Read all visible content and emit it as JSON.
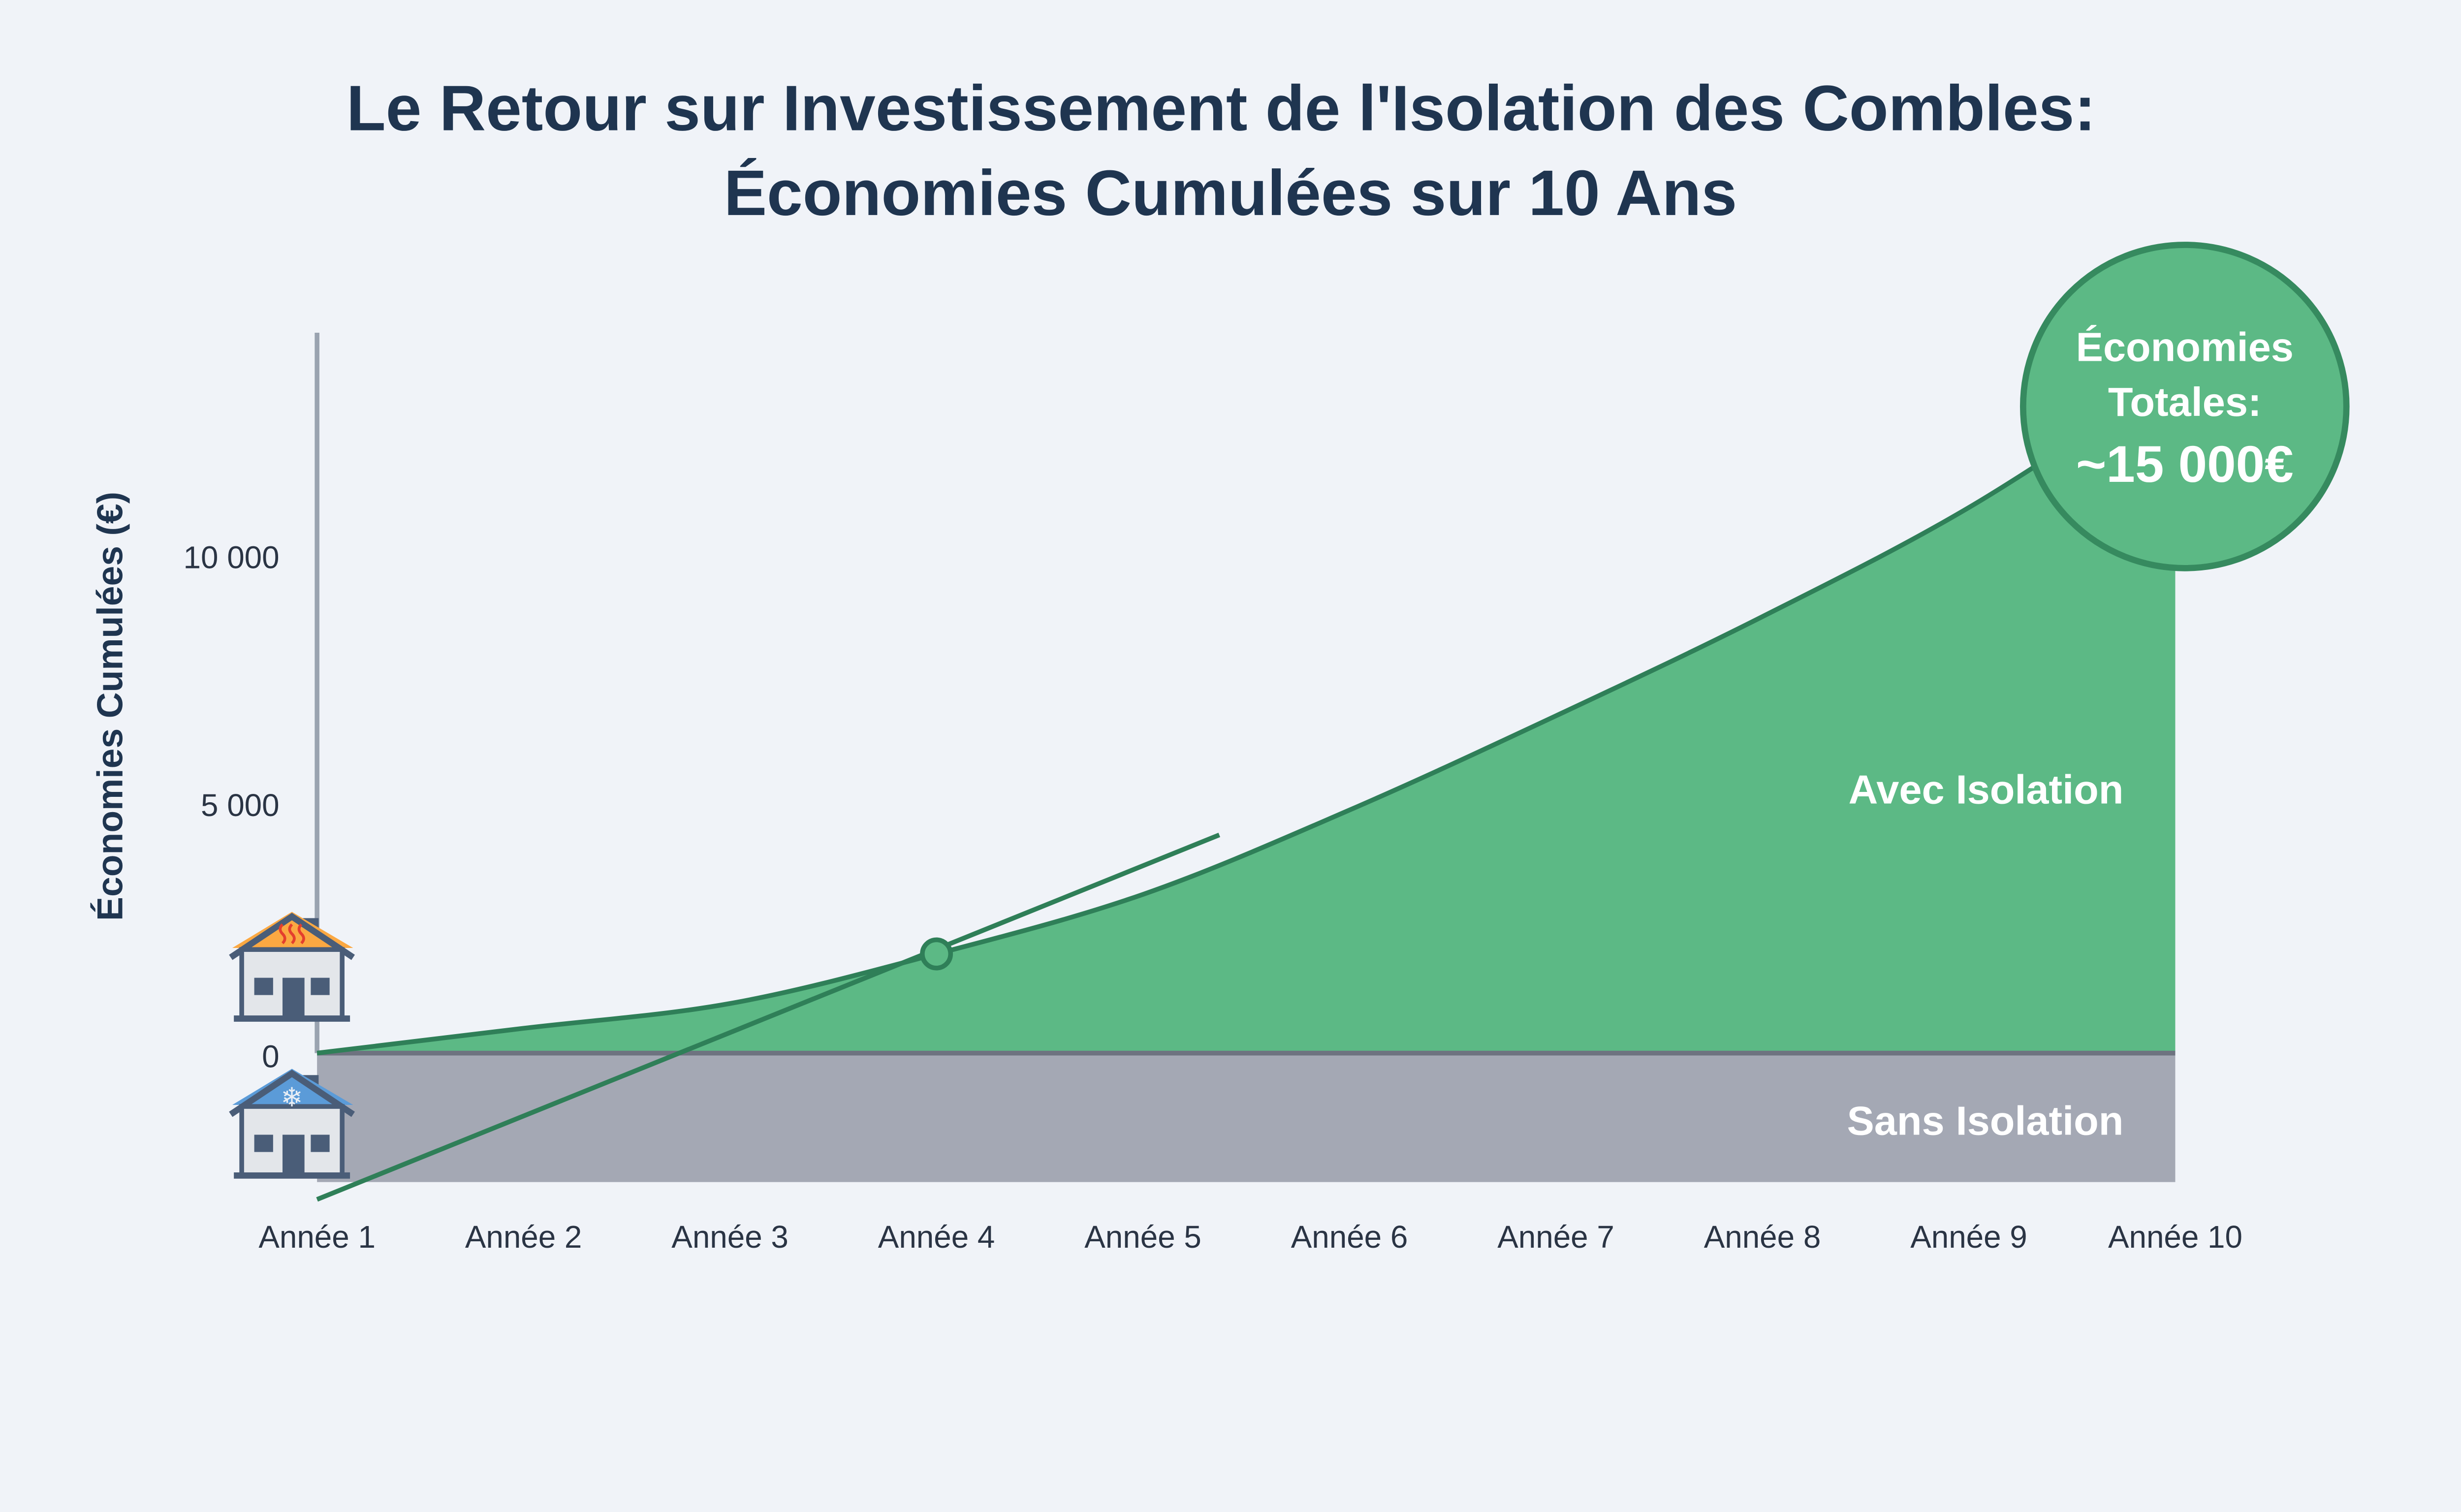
{
  "chart_data": {
    "type": "area",
    "title_lines": [
      "Le Retour sur Investissement de l'Isolation des Combles:",
      "Économies Cumulées sur 10 Ans"
    ],
    "xlabel": "",
    "ylabel": "Économies Cumulées (€)",
    "categories": [
      "Année 1",
      "Année 2",
      "Année 3",
      "Année 4",
      "Année 5",
      "Année 6",
      "Année 7",
      "Année 8",
      "Année 9",
      "Année 10"
    ],
    "y_ticks": [
      {
        "value": 0,
        "label": "0"
      },
      {
        "value": 5000,
        "label": "5 000"
      },
      {
        "value": 10000,
        "label": "10 000"
      }
    ],
    "ylim": [
      -3000,
      14500
    ],
    "series": [
      {
        "name": "Avec Isolation",
        "values": [
          0,
          500,
          1000,
          2000,
          3200,
          4900,
          6800,
          8800,
          11000,
          13700
        ],
        "color": "#5cb985",
        "line_color": "#2f7f58"
      },
      {
        "name": "Sans Isolation",
        "values": [
          -2600,
          -2600,
          -2600,
          -2600,
          -2600,
          -2600,
          -2600,
          -2600,
          -2600,
          -2600
        ],
        "color": "#a4a8b4"
      }
    ],
    "investment_line": {
      "from": [
        1,
        -2950
      ],
      "to": [
        5.37,
        4400
      ],
      "color": "#2f7f58"
    },
    "breakeven_marker": {
      "x": 4,
      "y": 2000
    },
    "annotation": {
      "lines": [
        "Économies",
        "Totales:",
        "~15 000€"
      ]
    },
    "grid": false
  }
}
